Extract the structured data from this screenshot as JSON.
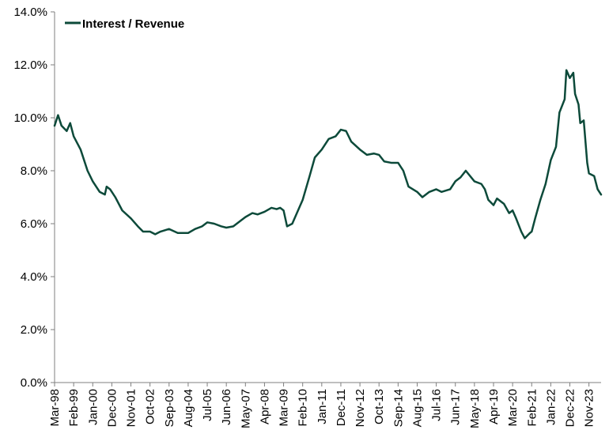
{
  "colors": {
    "line": "#0d4a3a",
    "axis": "#7f7f7f",
    "background": "#ffffff"
  },
  "chart_data": {
    "type": "line",
    "title": "",
    "xlabel": "",
    "ylabel": "",
    "grid": false,
    "legend_position": "top-left",
    "ylim": [
      0,
      14
    ],
    "y_ticks": [
      "0.0%",
      "2.0%",
      "4.0%",
      "6.0%",
      "8.0%",
      "10.0%",
      "12.0%",
      "14.0%"
    ],
    "x_ticks": [
      "Mar-98",
      "Feb-99",
      "Jan-00",
      "Dec-00",
      "Nov-01",
      "Oct-02",
      "Sep-03",
      "Aug-04",
      "Jul-05",
      "Jun-06",
      "May-07",
      "Apr-08",
      "Mar-09",
      "Feb-10",
      "Jan-11",
      "Dec-11",
      "Nov-12",
      "Oct-13",
      "Sep-14",
      "Aug-15",
      "Jul-16",
      "Jun-17",
      "May-18",
      "Apr-19",
      "Mar-20",
      "Feb-21",
      "Jan-22",
      "Dec-22",
      "Nov-23"
    ],
    "series": [
      {
        "name": "Interest / Revenue",
        "points": [
          [
            "Mar-98",
            9.7
          ],
          [
            "May-98",
            10.1
          ],
          [
            "Jul-98",
            9.7
          ],
          [
            "Oct-98",
            9.5
          ],
          [
            "Dec-98",
            9.8
          ],
          [
            "Feb-99",
            9.3
          ],
          [
            "Jun-99",
            8.8
          ],
          [
            "Oct-99",
            8.0
          ],
          [
            "Jan-00",
            7.6
          ],
          [
            "May-00",
            7.2
          ],
          [
            "Aug-00",
            7.1
          ],
          [
            "Sep-00",
            7.4
          ],
          [
            "Nov-00",
            7.3
          ],
          [
            "Feb-01",
            7.0
          ],
          [
            "Jun-01",
            6.5
          ],
          [
            "Nov-01",
            6.2
          ],
          [
            "Mar-02",
            5.9
          ],
          [
            "Jun-02",
            5.7
          ],
          [
            "Oct-02",
            5.7
          ],
          [
            "Jan-03",
            5.6
          ],
          [
            "Apr-03",
            5.7
          ],
          [
            "Sep-03",
            5.8
          ],
          [
            "Feb-04",
            5.65
          ],
          [
            "Aug-04",
            5.65
          ],
          [
            "Dec-04",
            5.8
          ],
          [
            "Apr-05",
            5.9
          ],
          [
            "Jul-05",
            6.05
          ],
          [
            "Nov-05",
            6.0
          ],
          [
            "Mar-06",
            5.9
          ],
          [
            "Jun-06",
            5.85
          ],
          [
            "Oct-06",
            5.9
          ],
          [
            "Feb-07",
            6.1
          ],
          [
            "May-07",
            6.25
          ],
          [
            "Sep-07",
            6.4
          ],
          [
            "Dec-07",
            6.35
          ],
          [
            "Apr-08",
            6.45
          ],
          [
            "Aug-08",
            6.6
          ],
          [
            "Nov-08",
            6.55
          ],
          [
            "Jan-09",
            6.6
          ],
          [
            "Mar-09",
            6.5
          ],
          [
            "May-09",
            5.9
          ],
          [
            "Aug-09",
            6.0
          ],
          [
            "Feb-10",
            6.9
          ],
          [
            "Jun-10",
            7.8
          ],
          [
            "Sep-10",
            8.5
          ],
          [
            "Jan-11",
            8.8
          ],
          [
            "May-11",
            9.2
          ],
          [
            "Sep-11",
            9.3
          ],
          [
            "Dec-11",
            9.55
          ],
          [
            "Mar-12",
            9.5
          ],
          [
            "Jun-12",
            9.1
          ],
          [
            "Nov-12",
            8.8
          ],
          [
            "Mar-13",
            8.6
          ],
          [
            "Jul-13",
            8.65
          ],
          [
            "Oct-13",
            8.6
          ],
          [
            "Jan-14",
            8.35
          ],
          [
            "May-14",
            8.3
          ],
          [
            "Sep-14",
            8.3
          ],
          [
            "Dec-14",
            8.0
          ],
          [
            "Mar-15",
            7.4
          ],
          [
            "Aug-15",
            7.2
          ],
          [
            "Nov-15",
            7.0
          ],
          [
            "Mar-16",
            7.2
          ],
          [
            "Jul-16",
            7.3
          ],
          [
            "Oct-16",
            7.2
          ],
          [
            "Mar-17",
            7.3
          ],
          [
            "Jun-17",
            7.6
          ],
          [
            "Sep-17",
            7.75
          ],
          [
            "Dec-17",
            8.0
          ],
          [
            "May-18",
            7.6
          ],
          [
            "Sep-18",
            7.5
          ],
          [
            "Nov-18",
            7.3
          ],
          [
            "Jan-19",
            6.9
          ],
          [
            "Apr-19",
            6.7
          ],
          [
            "Jun-19",
            6.95
          ],
          [
            "Oct-19",
            6.75
          ],
          [
            "Jan-20",
            6.4
          ],
          [
            "Mar-20",
            6.5
          ],
          [
            "May-20",
            6.2
          ],
          [
            "Aug-20",
            5.7
          ],
          [
            "Oct-20",
            5.45
          ],
          [
            "Jan-21",
            5.65
          ],
          [
            "Feb-21",
            5.7
          ],
          [
            "Apr-21",
            6.2
          ],
          [
            "Jul-21",
            6.9
          ],
          [
            "Oct-21",
            7.5
          ],
          [
            "Jan-22",
            8.4
          ],
          [
            "Apr-22",
            8.9
          ],
          [
            "Jun-22",
            10.2
          ],
          [
            "Sep-22",
            10.7
          ],
          [
            "Oct-22",
            11.8
          ],
          [
            "Dec-22",
            11.5
          ],
          [
            "Feb-23",
            11.7
          ],
          [
            "Mar-23",
            10.9
          ],
          [
            "May-23",
            10.5
          ],
          [
            "Jun-23",
            9.8
          ],
          [
            "Aug-23",
            9.9
          ],
          [
            "Oct-23",
            8.3
          ],
          [
            "Nov-23",
            7.9
          ],
          [
            "Feb-24",
            7.8
          ],
          [
            "Apr-24",
            7.3
          ],
          [
            "Jun-24",
            7.1
          ]
        ]
      }
    ]
  }
}
